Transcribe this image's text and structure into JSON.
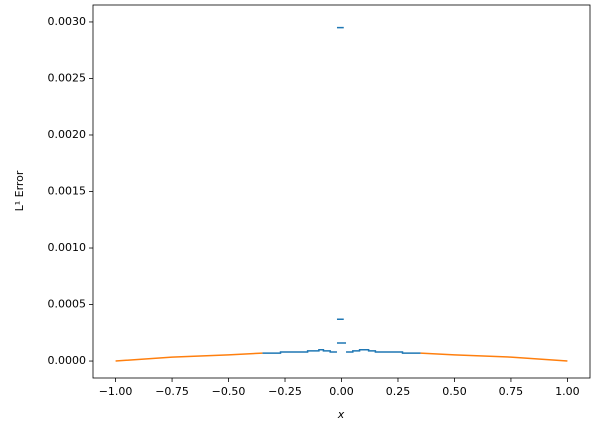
{
  "chart_data": {
    "type": "line",
    "xlabel": "x",
    "ylabel": "L¹ Error",
    "xlim": [
      -1.1,
      1.1
    ],
    "ylim": [
      -0.00015,
      0.00315
    ],
    "xticks": [
      {
        "value": -1,
        "label": "−1.00"
      },
      {
        "value": -0.75,
        "label": "−0.75"
      },
      {
        "value": -0.5,
        "label": "−0.50"
      },
      {
        "value": -0.25,
        "label": "−0.25"
      },
      {
        "value": 0,
        "label": "0.00"
      },
      {
        "value": 0.25,
        "label": "0.25"
      },
      {
        "value": 0.5,
        "label": "0.50"
      },
      {
        "value": 0.75,
        "label": "0.75"
      },
      {
        "value": 1,
        "label": "1.00"
      }
    ],
    "yticks": [
      {
        "value": 0,
        "label": "0.0000"
      },
      {
        "value": 0.0005,
        "label": "0.0005"
      },
      {
        "value": 0.001,
        "label": "0.0010"
      },
      {
        "value": 0.0015,
        "label": "0.0015"
      },
      {
        "value": 0.002,
        "label": "0.0020"
      },
      {
        "value": 0.0025,
        "label": "0.0025"
      },
      {
        "value": 0.003,
        "label": "0.0030"
      }
    ],
    "series": [
      {
        "color": "#1f77b4",
        "x": [
          -0.35,
          -0.27,
          -0.27,
          -0.15,
          -0.15,
          -0.1,
          -0.1,
          -0.08,
          -0.08,
          -0.05,
          -0.05,
          -0.02,
          0,
          -0.02,
          0.02,
          0,
          -0.02,
          0.01,
          0,
          -0.02,
          0.01,
          0,
          0.02,
          0.05,
          0.05,
          0.08,
          0.08,
          0.12,
          0.12,
          0.15,
          0.15,
          0.27,
          0.27,
          0.35
        ],
        "values": [
          7e-05,
          7e-05,
          8e-05,
          8e-05,
          9e-05,
          9e-05,
          0.0001,
          0.0001,
          9e-05,
          9e-05,
          8e-05,
          8e-05,
          null,
          0.00016,
          0.00016,
          null,
          0.00037,
          0.00037,
          null,
          0.00295,
          0.00295,
          null,
          8e-05,
          8e-05,
          9e-05,
          9e-05,
          0.0001,
          0.0001,
          9e-05,
          9e-05,
          8e-05,
          8e-05,
          7e-05,
          7e-05
        ]
      },
      {
        "color": "#ff7f0e",
        "x": [
          -1,
          -0.75,
          -0.5,
          -0.35,
          0,
          0.35,
          0.5,
          0.75,
          1
        ],
        "values": [
          0,
          3.5e-05,
          5.5e-05,
          7e-05,
          null,
          7e-05,
          5.5e-05,
          3.5e-05,
          0
        ]
      }
    ]
  }
}
